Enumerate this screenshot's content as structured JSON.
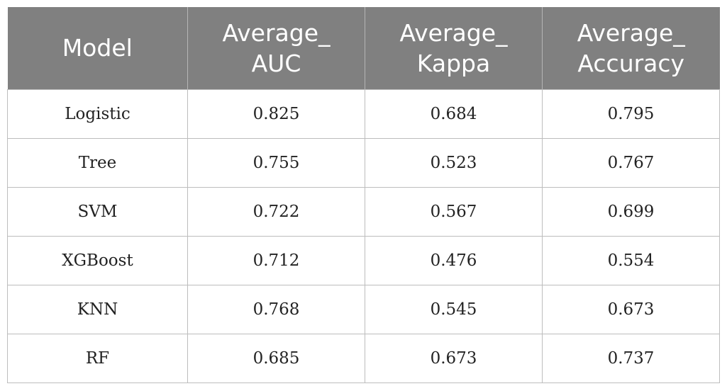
{
  "table": {
    "headers": [
      [
        "Model"
      ],
      [
        "Average_",
        "AUC"
      ],
      [
        "Average_",
        "Kappa"
      ],
      [
        "Average_",
        "Accuracy"
      ]
    ],
    "rows": [
      [
        "Logistic",
        "0.825",
        "0.684",
        "0.795"
      ],
      [
        "Tree",
        "0.755",
        "0.523",
        "0.767"
      ],
      [
        "SVM",
        "0.722",
        "0.567",
        "0.699"
      ],
      [
        "XGBoost",
        "0.712",
        "0.476",
        "0.554"
      ],
      [
        "KNN",
        "0.768",
        "0.545",
        "0.673"
      ],
      [
        "RF",
        "0.685",
        "0.673",
        "0.737"
      ]
    ]
  },
  "colors": {
    "header_bg": "#808080",
    "header_text": "#ffffff",
    "grid": "#bdbdbd",
    "body_text": "#222222"
  }
}
